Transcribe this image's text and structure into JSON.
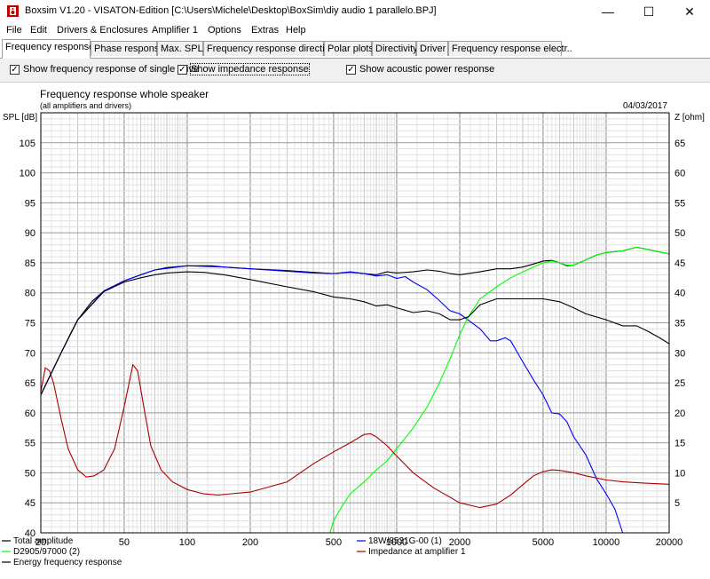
{
  "window": {
    "title": "Boxsim V1.20 - VISATON-Edition [C:\\Users\\Michele\\Desktop\\BoxSim\\diy audio 1 parallelo.BPJ]",
    "minimize_glyph": "—",
    "maximize_glyph": "☐",
    "close_glyph": "✕"
  },
  "menu": [
    "File",
    "Edit",
    "Drivers & Enclosures",
    "Amplifier 1",
    "Options",
    "Extras",
    "Help"
  ],
  "tabs": [
    {
      "label": "Frequency response.",
      "active": true
    },
    {
      "label": "Phase response",
      "active": false
    },
    {
      "label": "Max. SPL",
      "active": false
    },
    {
      "label": "Frequency response directions",
      "active": false
    },
    {
      "label": "Polar plots",
      "active": false
    },
    {
      "label": "Directivity",
      "active": false
    },
    {
      "label": "Driver",
      "active": false
    },
    {
      "label": "Frequency response electr..",
      "active": false
    }
  ],
  "options": [
    {
      "label": "Show frequency response of single drive",
      "checked": true
    },
    {
      "label": "Show impedance response",
      "checked": true
    },
    {
      "label": "Show acoustic power response",
      "checked": true
    }
  ],
  "check_glyph": "✓",
  "chart_data": {
    "type": "line",
    "title": "Frequency response whole speaker",
    "subtitle": "(all amplifiers and drivers)",
    "date": "04/03/2017",
    "ylabel": "SPL [dB]",
    "y2label": "Z [ohm]",
    "xscale": "log",
    "xlim": [
      20,
      20000
    ],
    "ylim": [
      40,
      110
    ],
    "y2lim": [
      0,
      70
    ],
    "xticks": [
      20,
      50,
      100,
      200,
      500,
      1000,
      2000,
      5000,
      10000,
      20000
    ],
    "xtick_labels": [
      "20",
      "50",
      "100",
      "200",
      "500",
      "1000",
      "2000",
      "5000",
      "10000",
      "20000"
    ],
    "yticks": [
      40,
      45,
      50,
      55,
      60,
      65,
      70,
      75,
      80,
      85,
      90,
      95,
      100,
      105
    ],
    "ytick_labels": [
      "40",
      "45",
      "50",
      "55",
      "60",
      "65",
      "70",
      "75",
      "80",
      "85",
      "90",
      "95",
      "100",
      "105"
    ],
    "y2ticks": [
      5,
      10,
      15,
      20,
      25,
      30,
      35,
      40,
      45,
      50,
      55,
      60,
      65
    ],
    "y2tick_labels": [
      "5",
      "10",
      "15",
      "20",
      "25",
      "30",
      "35",
      "40",
      "45",
      "50",
      "55",
      "60",
      "65"
    ],
    "grid": true,
    "legend_placement": "bottom",
    "series": [
      {
        "name": "Total amplitude",
        "color": "#000000",
        "axis": "left",
        "points": [
          [
            20,
            63
          ],
          [
            22,
            66
          ],
          [
            25,
            70
          ],
          [
            28,
            73.5
          ],
          [
            30,
            75.5
          ],
          [
            35,
            78.5
          ],
          [
            40,
            80.3
          ],
          [
            50,
            82
          ],
          [
            60,
            83
          ],
          [
            70,
            83.8
          ],
          [
            80,
            84.2
          ],
          [
            100,
            84.5
          ],
          [
            130,
            84.5
          ],
          [
            150,
            84.3
          ],
          [
            200,
            84
          ],
          [
            300,
            83.7
          ],
          [
            400,
            83.4
          ],
          [
            500,
            83.2
          ],
          [
            600,
            83.4
          ],
          [
            700,
            83.2
          ],
          [
            800,
            83
          ],
          [
            900,
            83.5
          ],
          [
            1000,
            83.3
          ],
          [
            1200,
            83.5
          ],
          [
            1400,
            83.8
          ],
          [
            1600,
            83.6
          ],
          [
            1800,
            83.2
          ],
          [
            2000,
            83
          ],
          [
            2500,
            83.5
          ],
          [
            3000,
            84
          ],
          [
            3500,
            84
          ],
          [
            4000,
            84.3
          ],
          [
            4500,
            84.8
          ],
          [
            5000,
            85.3
          ],
          [
            5500,
            85.4
          ],
          [
            6000,
            85
          ],
          [
            6500,
            84.5
          ],
          [
            7000,
            84.6
          ],
          [
            8000,
            85.5
          ],
          [
            9000,
            86.3
          ],
          [
            10000,
            86.7
          ],
          [
            12000,
            87
          ],
          [
            14000,
            87.6
          ],
          [
            16000,
            87.2
          ],
          [
            18000,
            86.8
          ],
          [
            20000,
            86.5
          ]
        ]
      },
      {
        "name": "18W/8531G-00 (1)",
        "color": "#0000ff",
        "axis": "left",
        "points": [
          [
            20,
            63
          ],
          [
            25,
            70
          ],
          [
            30,
            75.5
          ],
          [
            40,
            80.3
          ],
          [
            50,
            82
          ],
          [
            70,
            83.8
          ],
          [
            100,
            84.5
          ],
          [
            150,
            84.3
          ],
          [
            200,
            84
          ],
          [
            300,
            83.6
          ],
          [
            400,
            83.3
          ],
          [
            500,
            83.2
          ],
          [
            600,
            83.5
          ],
          [
            700,
            83.2
          ],
          [
            800,
            82.8
          ],
          [
            900,
            83
          ],
          [
            1000,
            82.4
          ],
          [
            1100,
            82.7
          ],
          [
            1200,
            81.8
          ],
          [
            1400,
            80.5
          ],
          [
            1600,
            78.7
          ],
          [
            1800,
            77
          ],
          [
            2000,
            76.5
          ],
          [
            2500,
            74
          ],
          [
            2800,
            72
          ],
          [
            3000,
            72
          ],
          [
            3300,
            72.5
          ],
          [
            3500,
            72
          ],
          [
            4000,
            68.5
          ],
          [
            4500,
            65.5
          ],
          [
            5000,
            63
          ],
          [
            5500,
            60
          ],
          [
            6000,
            59.8
          ],
          [
            6500,
            58.5
          ],
          [
            7000,
            56
          ],
          [
            8000,
            53
          ],
          [
            9000,
            49
          ],
          [
            10000,
            46.5
          ],
          [
            11000,
            44
          ],
          [
            12000,
            40
          ],
          [
            20000,
            40
          ]
        ]
      },
      {
        "name": "D2905/97000 (2)",
        "color": "#00ff00",
        "axis": "left",
        "points": [
          [
            480,
            40
          ],
          [
            500,
            42
          ],
          [
            550,
            44.5
          ],
          [
            600,
            46.5
          ],
          [
            700,
            48.5
          ],
          [
            800,
            50.5
          ],
          [
            900,
            52
          ],
          [
            1000,
            54
          ],
          [
            1200,
            57.5
          ],
          [
            1400,
            61
          ],
          [
            1600,
            65
          ],
          [
            1800,
            69
          ],
          [
            2000,
            73
          ],
          [
            2200,
            76
          ],
          [
            2500,
            79
          ],
          [
            3000,
            81
          ],
          [
            3500,
            82.5
          ],
          [
            4000,
            83.5
          ],
          [
            4500,
            84.3
          ],
          [
            5000,
            85
          ],
          [
            5500,
            85.3
          ],
          [
            6000,
            85
          ],
          [
            6500,
            84.6
          ],
          [
            7000,
            84.6
          ],
          [
            8000,
            85.5
          ],
          [
            9000,
            86.3
          ],
          [
            10000,
            86.7
          ],
          [
            12000,
            87
          ],
          [
            14000,
            87.6
          ],
          [
            16000,
            87.2
          ],
          [
            18000,
            86.8
          ],
          [
            20000,
            86.5
          ]
        ]
      },
      {
        "name": "Impedance at amplifier 1",
        "color": "#aa0000",
        "axis": "right",
        "points": [
          [
            20,
            23.5
          ],
          [
            21,
            27.5
          ],
          [
            22,
            27
          ],
          [
            23,
            25
          ],
          [
            25,
            19
          ],
          [
            27,
            14
          ],
          [
            30,
            10.5
          ],
          [
            33,
            9.3
          ],
          [
            36,
            9.5
          ],
          [
            40,
            10.5
          ],
          [
            45,
            14
          ],
          [
            50,
            21
          ],
          [
            55,
            28
          ],
          [
            58,
            27
          ],
          [
            62,
            21
          ],
          [
            67,
            14.5
          ],
          [
            75,
            10.5
          ],
          [
            85,
            8.5
          ],
          [
            100,
            7.2
          ],
          [
            120,
            6.5
          ],
          [
            140,
            6.3
          ],
          [
            200,
            6.8
          ],
          [
            300,
            8.5
          ],
          [
            400,
            11.5
          ],
          [
            500,
            13.5
          ],
          [
            600,
            15
          ],
          [
            700,
            16.4
          ],
          [
            750,
            16.5
          ],
          [
            800,
            16
          ],
          [
            900,
            14.5
          ],
          [
            1000,
            12.8
          ],
          [
            1200,
            10
          ],
          [
            1500,
            7.5
          ],
          [
            2000,
            5
          ],
          [
            2500,
            4.2
          ],
          [
            3000,
            4.8
          ],
          [
            3500,
            6.3
          ],
          [
            4000,
            8
          ],
          [
            4500,
            9.5
          ],
          [
            5000,
            10.2
          ],
          [
            5500,
            10.5
          ],
          [
            6000,
            10.4
          ],
          [
            7000,
            10
          ],
          [
            8000,
            9.5
          ],
          [
            10000,
            8.8
          ],
          [
            12000,
            8.5
          ],
          [
            15000,
            8.3
          ],
          [
            20000,
            8.1
          ]
        ]
      },
      {
        "name": "Energy frequency response",
        "color": "#000000",
        "axis": "left",
        "points": [
          [
            20,
            63
          ],
          [
            25,
            70
          ],
          [
            30,
            75.5
          ],
          [
            40,
            80.2
          ],
          [
            50,
            81.8
          ],
          [
            60,
            82.5
          ],
          [
            70,
            83
          ],
          [
            80,
            83.3
          ],
          [
            100,
            83.5
          ],
          [
            120,
            83.4
          ],
          [
            150,
            83
          ],
          [
            200,
            82.2
          ],
          [
            300,
            81
          ],
          [
            400,
            80.2
          ],
          [
            500,
            79.3
          ],
          [
            600,
            79
          ],
          [
            700,
            78.5
          ],
          [
            800,
            77.8
          ],
          [
            900,
            78
          ],
          [
            1000,
            77.5
          ],
          [
            1200,
            76.7
          ],
          [
            1400,
            77
          ],
          [
            1600,
            76.5
          ],
          [
            1800,
            75.5
          ],
          [
            2000,
            75.5
          ],
          [
            2200,
            76
          ],
          [
            2500,
            78
          ],
          [
            3000,
            79
          ],
          [
            4000,
            79
          ],
          [
            5000,
            79
          ],
          [
            6000,
            78.5
          ],
          [
            7000,
            77.5
          ],
          [
            8000,
            76.5
          ],
          [
            10000,
            75.5
          ],
          [
            12000,
            74.5
          ],
          [
            14000,
            74.5
          ],
          [
            16000,
            73.5
          ],
          [
            18000,
            72.5
          ],
          [
            20000,
            71.5
          ]
        ]
      }
    ]
  },
  "legend": [
    "Total amplitude",
    "18W/8531G-00 (1)",
    "D2905/97000 (2)",
    "Impedance at amplifier 1",
    "Energy frequency response"
  ]
}
